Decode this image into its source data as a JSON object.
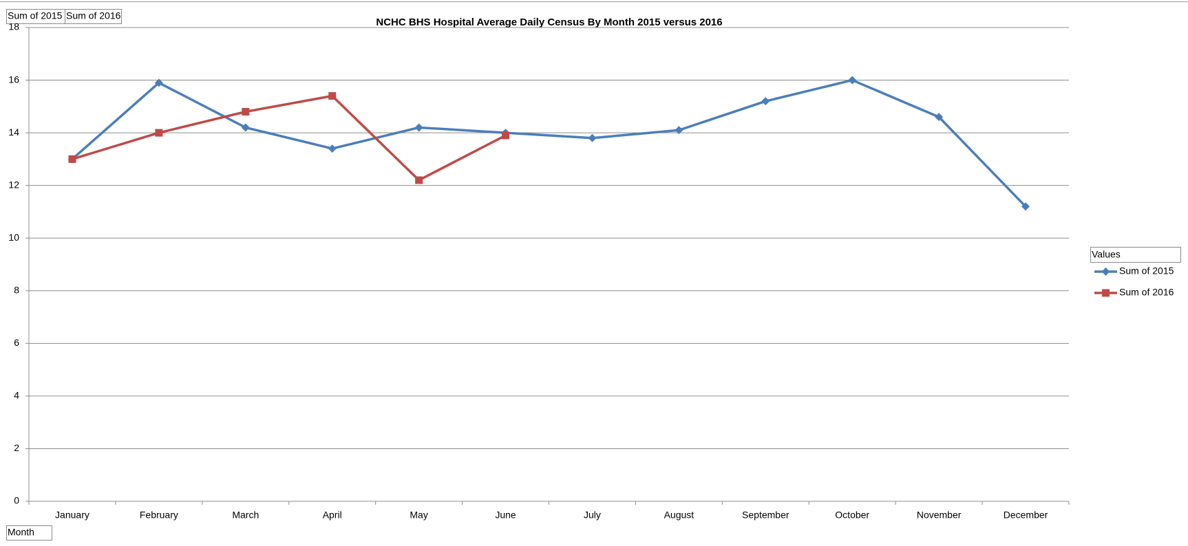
{
  "chart_data": {
    "type": "line",
    "title": "NCHC BHS Hospital Average Daily Census By Month 2015 versus 2016",
    "x_label": "Month",
    "legend_title": "Values",
    "categories": [
      "January",
      "February",
      "March",
      "April",
      "May",
      "June",
      "July",
      "August",
      "September",
      "October",
      "November",
      "December"
    ],
    "series": [
      {
        "name": "Sum of 2015",
        "color": "#4a7ebb",
        "marker": "diamond",
        "values": [
          13,
          15.9,
          14.2,
          13.4,
          14.2,
          14,
          13.8,
          14.1,
          15.2,
          16,
          14.6,
          11.2
        ]
      },
      {
        "name": "Sum of 2016",
        "color": "#be4b48",
        "marker": "square",
        "values": [
          13,
          14,
          14.8,
          15.4,
          12.2,
          13.9,
          null,
          null,
          null,
          null,
          null,
          null
        ]
      }
    ],
    "ylim": [
      0,
      18
    ],
    "yticks": [
      0,
      2,
      4,
      6,
      8,
      10,
      12,
      14,
      16,
      18
    ],
    "grid": true,
    "legend": "right"
  }
}
